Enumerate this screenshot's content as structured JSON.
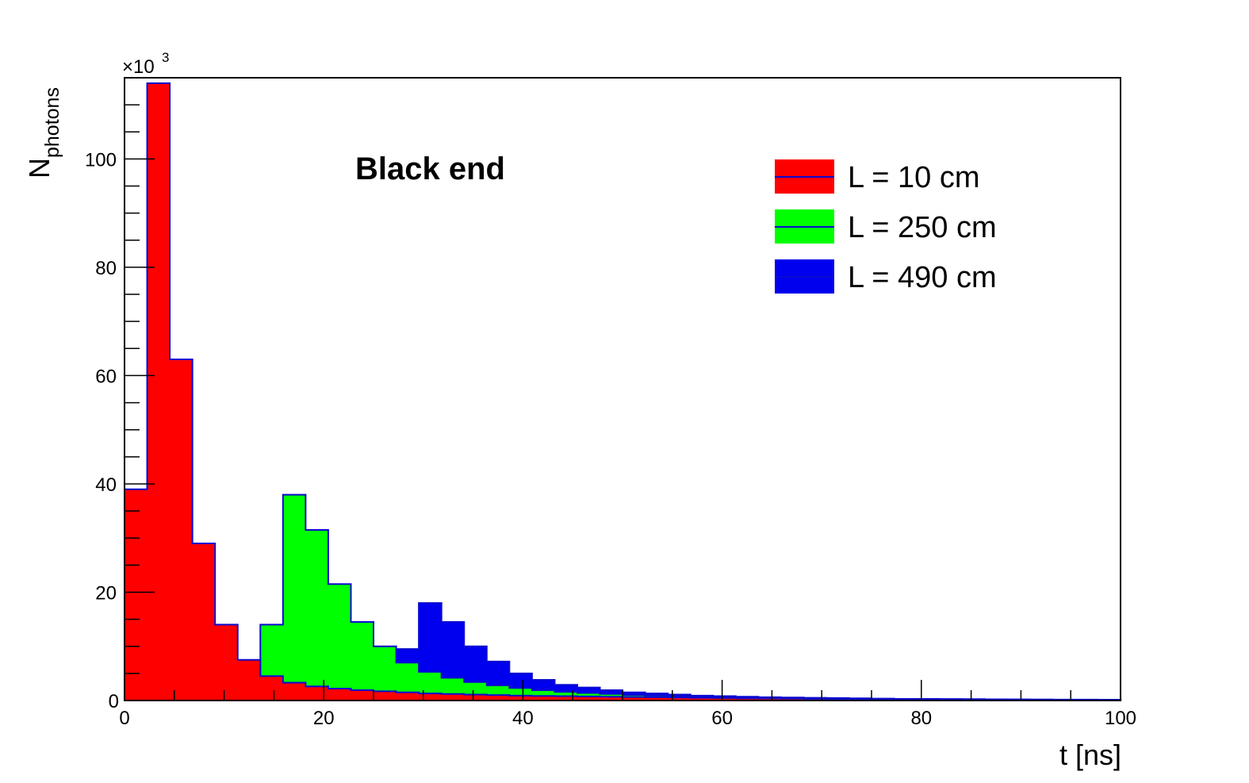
{
  "chart_data": {
    "type": "histogram",
    "title": "Black end",
    "xlabel": "t [ns]",
    "ylabel_main": "N",
    "ylabel_sub": "photons",
    "y_multiplier": {
      "prefix": "×10",
      "power": "3"
    },
    "xlim": [
      0,
      100
    ],
    "ylim": [
      0,
      115
    ],
    "x_ticks": [
      "0",
      "20",
      "40",
      "60",
      "80",
      "100"
    ],
    "y_ticks": [
      "0",
      "20",
      "40",
      "60",
      "80",
      "100"
    ],
    "x_tick_values": [
      0,
      20,
      40,
      60,
      80,
      100
    ],
    "y_tick_values": [
      0,
      20,
      40,
      60,
      80,
      100
    ],
    "x_minor_step": 5,
    "y_minor_step": 5,
    "bin_width": 2.273,
    "legend_position": "top-right",
    "outline_color": "#0a0ad0",
    "series": [
      {
        "name": "L = 490 cm",
        "color": "#0000ee",
        "values": [
          0,
          0,
          0,
          0,
          0,
          0,
          0,
          0,
          0,
          0,
          0,
          0,
          9.5,
          18.0,
          14.5,
          10.0,
          7.2,
          5.0,
          3.8,
          2.9,
          2.4,
          1.9,
          1.5,
          1.3,
          1.1,
          0.9,
          0.8,
          0.7,
          0.6,
          0.55,
          0.5,
          0.45,
          0.4,
          0.35,
          0.3,
          0.3,
          0.28,
          0.25,
          0.22,
          0.2,
          0.18,
          0.17,
          0.16,
          0.15
        ]
      },
      {
        "name": "L = 250 cm",
        "color": "#00ff00",
        "values": [
          0,
          0,
          0,
          0,
          0,
          0,
          14.0,
          38.0,
          31.5,
          21.5,
          14.5,
          10.0,
          7.0,
          5.3,
          4.2,
          3.4,
          2.8,
          2.3,
          1.9,
          1.6,
          1.4,
          1.2,
          1.0,
          0.9,
          0.8,
          0.7,
          0.65,
          0.6,
          0.5,
          0.45,
          0.4,
          0.35,
          0.3,
          0.3,
          0.28,
          0.25,
          0.22,
          0.2,
          0.18,
          0.17,
          0.16,
          0.15,
          0.14,
          0.13
        ]
      },
      {
        "name": "L = 10 cm",
        "color": "#ff0000",
        "values": [
          39.0,
          114.0,
          63.0,
          29.0,
          14.0,
          7.5,
          4.5,
          3.3,
          2.6,
          2.2,
          1.9,
          1.7,
          1.5,
          1.3,
          1.2,
          1.1,
          1.0,
          0.9,
          0.85,
          0.8,
          0.75,
          0.7,
          0.65,
          0.6,
          0.55,
          0.5,
          0.45,
          0.4,
          0.38,
          0.35,
          0.32,
          0.3,
          0.28,
          0.26,
          0.24,
          0.22,
          0.2,
          0.18,
          0.17,
          0.16,
          0.15,
          0.14,
          0.13,
          0.12
        ]
      }
    ],
    "legend_order": [
      "L = 10 cm",
      "L = 250 cm",
      "L = 490 cm"
    ]
  }
}
